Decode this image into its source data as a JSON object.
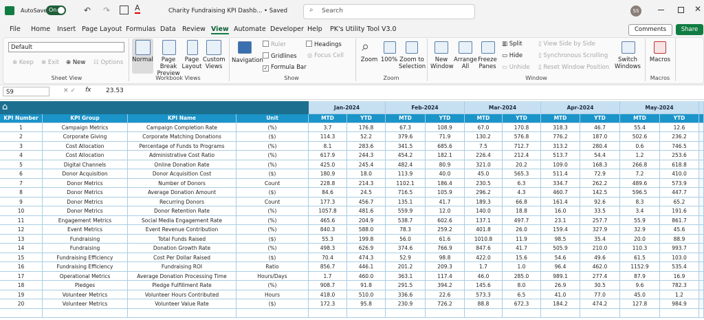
{
  "title_bar": {
    "autosave": "AutoSave",
    "toggle": "On",
    "file_name": "Charity Fundraising KPI Dashb...",
    "status": "• Saved",
    "search": "Search",
    "user": "SS"
  },
  "menu": {
    "tabs": [
      "File",
      "Home",
      "Insert",
      "Page Layout",
      "Formulas",
      "Data",
      "Review",
      "View",
      "Automate",
      "Developer",
      "Help",
      "PK's Utility Tool V3.0"
    ],
    "comments": "Comments",
    "share": "Share"
  },
  "ribbon": {
    "sheet_view": {
      "label": "Sheet View",
      "dropdown": "Default",
      "keep": "Keep",
      "exit": "Exit",
      "new": "New",
      "options": "Options"
    },
    "workbook_views": {
      "label": "Workbook Views",
      "normal": "Normal",
      "page_break": "Page Break Preview",
      "page_layout": "Page Layout",
      "custom": "Custom Views"
    },
    "show": {
      "label": "Show",
      "navigation": "Navigation",
      "ruler": "Ruler",
      "gridlines": "Gridlines",
      "formula_bar": "Formula Bar",
      "headings": "Headings",
      "focus_cell": "Focus Cell"
    },
    "zoom": {
      "label": "Zoom",
      "zoom": "Zoom",
      "hundred": "100%",
      "selection": "Zoom to Selection"
    },
    "window": {
      "label": "Window",
      "new_window": "New Window",
      "arrange": "Arrange All",
      "freeze": "Freeze Panes",
      "split": "Split",
      "hide": "Hide",
      "unhide": "Unhide",
      "side": "View Side by Side",
      "sync": "Synchronous Scrolling",
      "reset": "Reset Window Position",
      "switch": "Switch Windows"
    },
    "macros": {
      "label": "Macros",
      "macros": "Macros"
    }
  },
  "formula_bar": {
    "cell": "S9",
    "fx": "fx",
    "value": "23.53"
  },
  "sheet": {
    "columns": [
      "KPI Number",
      "KPI Group",
      "KPI Name",
      "Unit"
    ],
    "months": [
      "Jan-2024",
      "Feb-2024",
      "Mar-2024",
      "Apr-2024",
      "May-2024"
    ],
    "sub_headers": [
      "MTD",
      "YTD"
    ],
    "rows": [
      [
        "1",
        "Campaign Metrics",
        "Campaign Completion Rate",
        "(%)",
        "3.7",
        "176.8",
        "67.3",
        "108.9",
        "67.0",
        "170.8",
        "318.3",
        "46.7",
        "55.4",
        "12.6"
      ],
      [
        "2",
        "Corporate Giving",
        "Corporate Matching Donations",
        "($)",
        "114.3",
        "52.2",
        "379.6",
        "71.9",
        "130.2",
        "576.8",
        "776.2",
        "187.0",
        "502.6",
        "236.2"
      ],
      [
        "3",
        "Cost Allocation",
        "Percentage of Funds to Programs",
        "(%)",
        "8.1",
        "283.6",
        "341.5",
        "685.6",
        "7.5",
        "712.7",
        "313.2",
        "280.4",
        "0.6",
        "746.5"
      ],
      [
        "4",
        "Cost Allocation",
        "Administrative Cost Ratio",
        "(%)",
        "617.9",
        "244.3",
        "454.2",
        "182.1",
        "226.4",
        "212.4",
        "513.7",
        "54.4",
        "1.2",
        "253.6"
      ],
      [
        "5",
        "Digital Channels",
        "Online Donation Rate",
        "(%)",
        "425.0",
        "245.4",
        "482.4",
        "80.9",
        "321.0",
        "20.2",
        "109.0",
        "168.3",
        "266.8",
        "618.8"
      ],
      [
        "6",
        "Donor Acquisition",
        "Donor Acquisition Cost",
        "($)",
        "180.9",
        "18.0",
        "113.9",
        "40.0",
        "45.0",
        "565.3",
        "511.4",
        "72.9",
        "7.2",
        "410.0"
      ],
      [
        "7",
        "Donor Metrics",
        "Number of Donors",
        "Count",
        "228.8",
        "214.3",
        "1102.1",
        "186.4",
        "230.5",
        "6.3",
        "334.7",
        "262.2",
        "489.6",
        "573.9"
      ],
      [
        "8",
        "Donor Metrics",
        "Average Donation Amount",
        "($)",
        "84.6",
        "24.5",
        "716.5",
        "105.9",
        "296.2",
        "4.3",
        "460.7",
        "142.5",
        "596.5",
        "447.7"
      ],
      [
        "9",
        "Donor Metrics",
        "Recurring Donors",
        "Count",
        "177.3",
        "456.7",
        "135.1",
        "41.7",
        "189.3",
        "66.8",
        "161.4",
        "92.6",
        "8.3",
        "65.2"
      ],
      [
        "10",
        "Donor Metrics",
        "Donor Retention Rate",
        "(%)",
        "1057.8",
        "481.6",
        "559.9",
        "12.0",
        "140.0",
        "18.8",
        "16.0",
        "33.5",
        "3.4",
        "191.6"
      ],
      [
        "11",
        "Engagement Metrics",
        "Social Media Engagement Rate",
        "(%)",
        "465.6",
        "204.9",
        "538.7",
        "602.6",
        "137.1",
        "497.7",
        "23.1",
        "257.7",
        "55.9",
        "861.7"
      ],
      [
        "12",
        "Event Metrics",
        "Event Revenue Contribution",
        "(%)",
        "840.3",
        "588.0",
        "78.3",
        "259.2",
        "401.8",
        "26.0",
        "159.4",
        "327.9",
        "32.9",
        "45.6"
      ],
      [
        "13",
        "Fundraising",
        "Total Funds Raised",
        "($)",
        "55.3",
        "199.8",
        "56.0",
        "61.6",
        "1010.8",
        "11.9",
        "98.5",
        "35.4",
        "20.0",
        "88.9"
      ],
      [
        "14",
        "Fundraising",
        "Donation Growth Rate",
        "(%)",
        "498.3",
        "626.9",
        "374.6",
        "766.9",
        "847.6",
        "41.7",
        "505.9",
        "210.0",
        "110.3",
        "993.7"
      ],
      [
        "15",
        "Fundraising Efficiency",
        "Cost Per Dollar Raised",
        "($)",
        "70.4",
        "474.3",
        "52.9",
        "98.8",
        "422.0",
        "15.6",
        "54.6",
        "49.6",
        "61.5",
        "103.0"
      ],
      [
        "16",
        "Fundraising Efficiency",
        "Fundraising ROI",
        "Ratio",
        "856.7",
        "446.1",
        "201.2",
        "209.3",
        "1.7",
        "1.0",
        "96.4",
        "462.0",
        "1152.9",
        "535.4"
      ],
      [
        "17",
        "Operational Metrics",
        "Average Donation Processing Time",
        "Hours/Days",
        "1.7",
        "460.0",
        "363.1",
        "117.4",
        "46.0",
        "285.0",
        "989.1",
        "277.4",
        "87.9",
        "16.9"
      ],
      [
        "18",
        "Pledges",
        "Pledge Fulfillment Rate",
        "(%)",
        "908.7",
        "91.8",
        "291.5",
        "394.2",
        "145.6",
        "8.0",
        "26.9",
        "30.5",
        "9.6",
        "782.3"
      ],
      [
        "19",
        "Volunteer Metrics",
        "Volunteer Hours Contributed",
        "Hours",
        "418.0",
        "510.0",
        "336.6",
        "22.6",
        "573.3",
        "6.5",
        "41.0",
        "77.0",
        "45.0",
        "1.2"
      ],
      [
        "20",
        "Volunteer Metrics",
        "Volunteer Value Rate",
        "($)",
        "172.3",
        "95.8",
        "230.9",
        "726.2",
        "88.8",
        "672.3",
        "184.2",
        "474.2",
        "127.8",
        "984.9"
      ]
    ]
  }
}
